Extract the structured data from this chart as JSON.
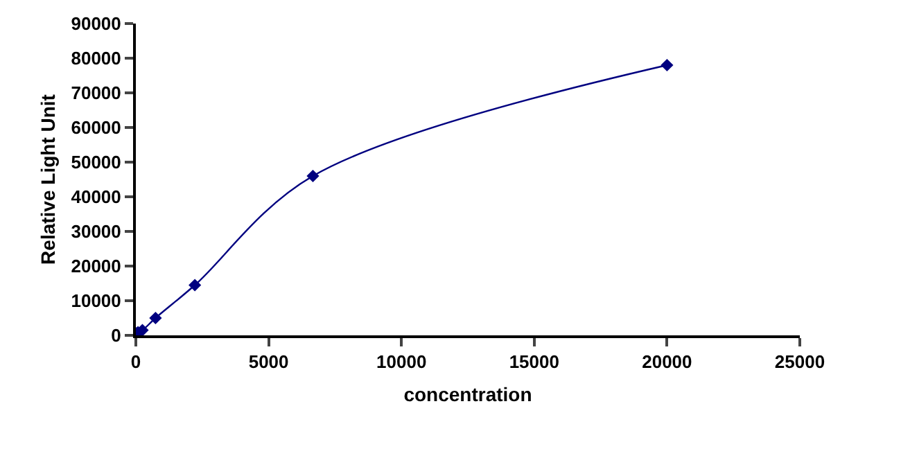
{
  "chart_data": {
    "type": "line",
    "xlabel": "concentration",
    "ylabel": "Relative Light Unit",
    "x": [
      0,
      82,
      247,
      741,
      2222,
      6667,
      20000
    ],
    "series": [
      {
        "color": "#000080",
        "values": [
          600,
          900,
          1500,
          5000,
          14500,
          46000,
          78000
        ]
      }
    ],
    "xlim": [
      0,
      25000
    ],
    "xticks": [
      0,
      5000,
      10000,
      15000,
      20000,
      25000
    ],
    "ylim": [
      0,
      90000
    ],
    "yticks": [
      0,
      10000,
      20000,
      30000,
      40000,
      50000,
      60000,
      70000,
      80000,
      90000
    ],
    "grid": false,
    "marker": "diamond",
    "line_style": "solid"
  }
}
